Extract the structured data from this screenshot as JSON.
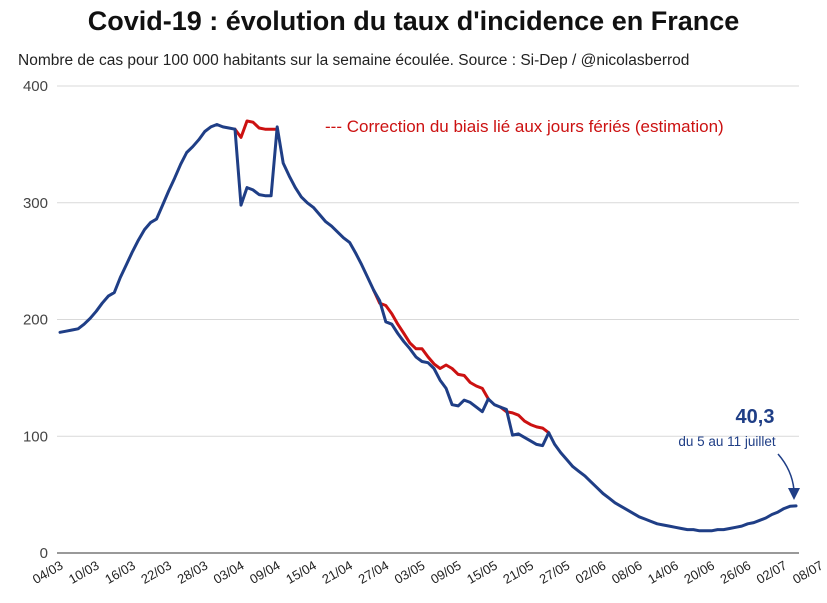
{
  "title": "Covid-19 : évolution du taux d'incidence en France",
  "subtitle": "Nombre de cas pour 100 000 habitants sur la semaine écoulée. Source : Si-Dep  / @nicolasberrod",
  "chart_data": {
    "type": "line",
    "title": "Covid-19 : évolution du taux d'incidence en France",
    "ylim": [
      0,
      400
    ],
    "yticks": [
      0,
      100,
      200,
      300,
      400
    ],
    "grid": true,
    "x_tick_labels": [
      "04/03",
      "10/03",
      "16/03",
      "22/03",
      "28/03",
      "03/04",
      "09/04",
      "15/04",
      "21/04",
      "27/04",
      "03/05",
      "09/05",
      "15/05",
      "21/05",
      "27/05",
      "02/06",
      "08/06",
      "14/06",
      "20/06",
      "26/06",
      "02/07",
      "08/07"
    ],
    "x_tick_days": [
      0,
      6,
      12,
      18,
      24,
      30,
      36,
      42,
      48,
      54,
      60,
      66,
      72,
      78,
      84,
      90,
      96,
      102,
      108,
      114,
      120,
      126
    ],
    "series": [
      {
        "name": "",
        "color": "#1f3e86",
        "points": [
          [
            0,
            189
          ],
          [
            1,
            190
          ],
          [
            2,
            191
          ],
          [
            3,
            192
          ],
          [
            4,
            196
          ],
          [
            5,
            201
          ],
          [
            6,
            207
          ],
          [
            7,
            214
          ],
          [
            8,
            220
          ],
          [
            9,
            223
          ],
          [
            10,
            236
          ],
          [
            11,
            247
          ],
          [
            12,
            258
          ],
          [
            13,
            268
          ],
          [
            14,
            277
          ],
          [
            15,
            283
          ],
          [
            16,
            286
          ],
          [
            17,
            298
          ],
          [
            18,
            310
          ],
          [
            19,
            321
          ],
          [
            20,
            333
          ],
          [
            21,
            343
          ],
          [
            22,
            348
          ],
          [
            23,
            354
          ],
          [
            24,
            361
          ],
          [
            25,
            365
          ],
          [
            26,
            367
          ],
          [
            27,
            365
          ],
          [
            28,
            364
          ],
          [
            29,
            363
          ],
          [
            30,
            298
          ],
          [
            31,
            313
          ],
          [
            32,
            311
          ],
          [
            33,
            307
          ],
          [
            34,
            306
          ],
          [
            35,
            306
          ],
          [
            36,
            365
          ],
          [
            37,
            334
          ],
          [
            38,
            323
          ],
          [
            39,
            313
          ],
          [
            40,
            305
          ],
          [
            41,
            300
          ],
          [
            42,
            296
          ],
          [
            43,
            290
          ],
          [
            44,
            284
          ],
          [
            45,
            280
          ],
          [
            46,
            275
          ],
          [
            47,
            270
          ],
          [
            48,
            266
          ],
          [
            49,
            257
          ],
          [
            50,
            247
          ],
          [
            51,
            236
          ],
          [
            52,
            225
          ],
          [
            53,
            216
          ],
          [
            54,
            198
          ],
          [
            55,
            196
          ],
          [
            56,
            188
          ],
          [
            57,
            181
          ],
          [
            58,
            175
          ],
          [
            59,
            168
          ],
          [
            60,
            164
          ],
          [
            61,
            163
          ],
          [
            62,
            158
          ],
          [
            63,
            148
          ],
          [
            64,
            141
          ],
          [
            65,
            127
          ],
          [
            66,
            126
          ],
          [
            67,
            131
          ],
          [
            68,
            129
          ],
          [
            69,
            125
          ],
          [
            70,
            121
          ],
          [
            71,
            132
          ],
          [
            72,
            127
          ],
          [
            73,
            125
          ],
          [
            74,
            123
          ],
          [
            75,
            101
          ],
          [
            76,
            102
          ],
          [
            77,
            99
          ],
          [
            78,
            96
          ],
          [
            79,
            93
          ],
          [
            80,
            92
          ],
          [
            81,
            103
          ],
          [
            82,
            93
          ],
          [
            83,
            86
          ],
          [
            84,
            80
          ],
          [
            85,
            74
          ],
          [
            86,
            70
          ],
          [
            87,
            66
          ],
          [
            88,
            61
          ],
          [
            89,
            56
          ],
          [
            90,
            51
          ],
          [
            91,
            47
          ],
          [
            92,
            43
          ],
          [
            93,
            40
          ],
          [
            94,
            37
          ],
          [
            95,
            34
          ],
          [
            96,
            31
          ],
          [
            97,
            29
          ],
          [
            98,
            27
          ],
          [
            99,
            25
          ],
          [
            100,
            24
          ],
          [
            101,
            23
          ],
          [
            102,
            22
          ],
          [
            103,
            21
          ],
          [
            104,
            20
          ],
          [
            105,
            20
          ],
          [
            106,
            19
          ],
          [
            107,
            19
          ],
          [
            108,
            19
          ],
          [
            109,
            20
          ],
          [
            110,
            20
          ],
          [
            111,
            21
          ],
          [
            112,
            22
          ],
          [
            113,
            23
          ],
          [
            114,
            25
          ],
          [
            115,
            26
          ],
          [
            116,
            28
          ],
          [
            117,
            30
          ],
          [
            118,
            33
          ],
          [
            119,
            35
          ],
          [
            120,
            38
          ],
          [
            121,
            40
          ],
          [
            122,
            40.3
          ]
        ]
      },
      {
        "name": "Correction du biais lié aux jours fériés (estimation)",
        "color": "#cc1111",
        "segments": [
          [
            [
              29,
              363
            ],
            [
              30,
              356
            ],
            [
              31,
              370
            ],
            [
              32,
              369
            ],
            [
              33,
              364
            ],
            [
              34,
              363
            ],
            [
              35,
              363
            ],
            [
              36,
              363
            ]
          ],
          [
            [
              52,
              225
            ],
            [
              53,
              214
            ],
            [
              54,
              212
            ],
            [
              55,
              205
            ],
            [
              56,
              196
            ],
            [
              57,
              188
            ],
            [
              58,
              180
            ],
            [
              59,
              175
            ],
            [
              60,
              175
            ],
            [
              61,
              168
            ],
            [
              62,
              162
            ],
            [
              63,
              158
            ],
            [
              64,
              161
            ],
            [
              65,
              158
            ],
            [
              66,
              153
            ],
            [
              67,
              152
            ],
            [
              68,
              146
            ],
            [
              69,
              143
            ],
            [
              70,
              141
            ],
            [
              71,
              132
            ]
          ],
          [
            [
              73,
              125
            ],
            [
              74,
              121
            ],
            [
              75,
              120
            ],
            [
              76,
              118
            ],
            [
              77,
              113
            ],
            [
              78,
              110
            ],
            [
              79,
              108
            ],
            [
              80,
              107
            ],
            [
              81,
              103
            ]
          ]
        ]
      }
    ],
    "legend": {
      "label": "--- Correction du biais lié aux jours fériés (estimation)",
      "position": "top-right"
    },
    "annotation": {
      "value": "40,3",
      "sub": "du 5 au 11 juillet"
    }
  }
}
